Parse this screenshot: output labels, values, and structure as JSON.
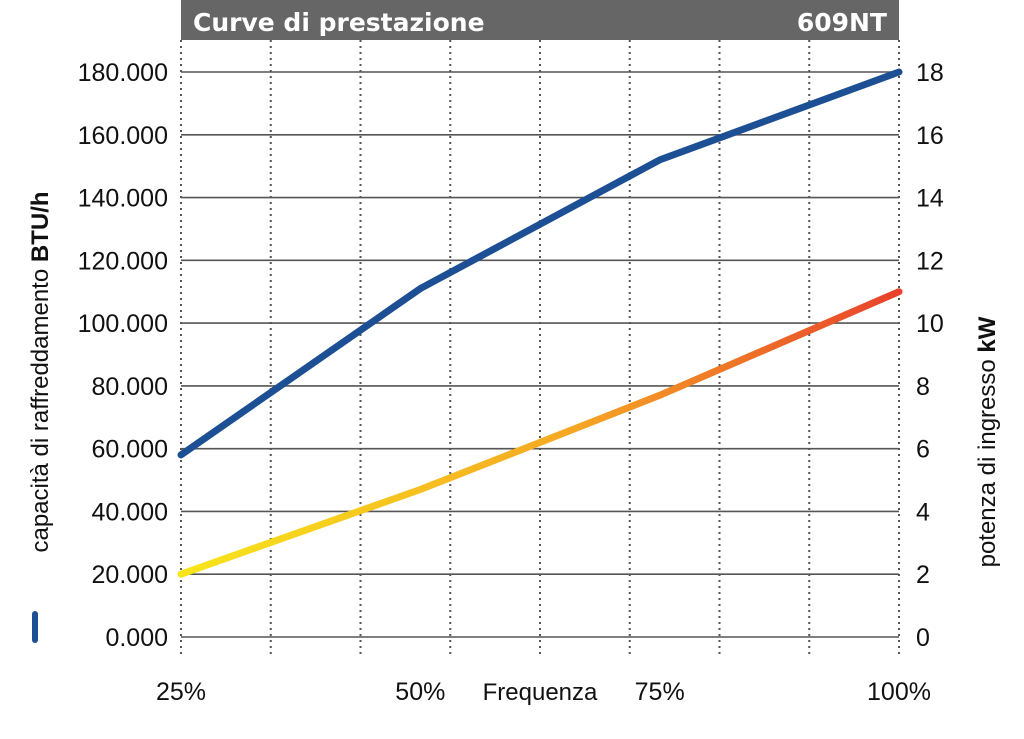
{
  "header": {
    "title": "Curve di prestazione",
    "model": "609NT",
    "background_color": "#666666"
  },
  "chart_data": {
    "type": "line",
    "x": [
      25,
      50,
      75,
      100
    ],
    "x_tick_labels": [
      "25%",
      "50%",
      "75%",
      "100%"
    ],
    "xlabel": "Frequenza",
    "left_axis": {
      "label_prefix": "capacità di raffreddamento ",
      "label_unit": "BTU/h",
      "ylim": [
        0,
        180000
      ],
      "ticks": [
        0,
        20000,
        40000,
        60000,
        80000,
        100000,
        120000,
        140000,
        160000,
        180000
      ],
      "tick_labels": [
        "0.000",
        "20.000",
        "40.000",
        "60.000",
        "80.000",
        "100.000",
        "120.000",
        "140.000",
        "160.000",
        "180.000"
      ]
    },
    "right_axis": {
      "label_prefix": "potenza di ingresso ",
      "label_unit": "kW",
      "ylim": [
        0,
        18
      ],
      "ticks": [
        0,
        2,
        4,
        6,
        8,
        10,
        12,
        14,
        16,
        18
      ],
      "tick_labels": [
        "0",
        "2",
        "4",
        "6",
        "8",
        "10",
        "12",
        "14",
        "16",
        "18"
      ]
    },
    "series": [
      {
        "axis": "left",
        "color": "#1c4f93",
        "values": [
          58000,
          111000,
          152000,
          180000
        ]
      },
      {
        "axis": "right",
        "color_gradient": [
          "#f7e61a",
          "#f5a623",
          "#e8412c"
        ],
        "values": [
          2.0,
          4.7,
          7.7,
          11.0
        ]
      }
    ],
    "grid": true
  }
}
